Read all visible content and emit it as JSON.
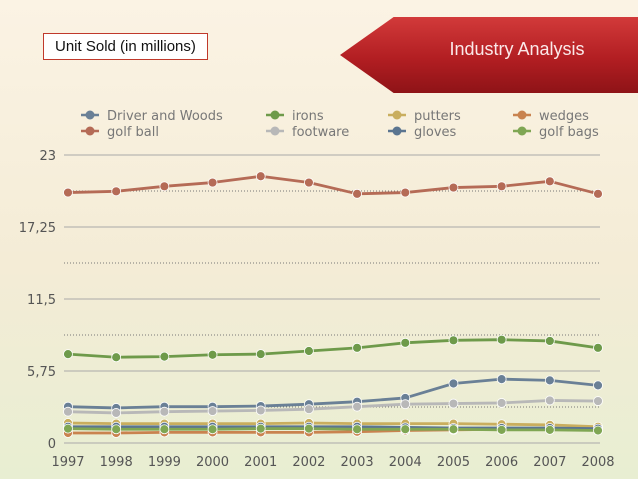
{
  "header": {
    "unit_label": "Unit Sold (in millions)",
    "banner_title": "Industry Analysis"
  },
  "chart_data": {
    "type": "line",
    "title": "",
    "xlabel": "",
    "ylabel": "Unit Sold (in millions)",
    "ylim": [
      0,
      23
    ],
    "yticks": [
      0,
      5.75,
      11.5,
      17.25,
      23
    ],
    "ytick_labels": [
      "0",
      "5,75",
      "11,5",
      "17,25",
      "23"
    ],
    "grid": true,
    "legend_position": "top",
    "categories": [
      "1997",
      "1998",
      "1999",
      "2000",
      "2001",
      "2002",
      "2003",
      "2004",
      "2005",
      "2006",
      "2007",
      "2008"
    ],
    "series": [
      {
        "name": "Driver and Woods",
        "color": "#6a8096",
        "values": [
          2.9,
          2.8,
          2.9,
          2.9,
          2.95,
          3.1,
          3.3,
          3.6,
          4.75,
          5.1,
          5.0,
          4.6
        ]
      },
      {
        "name": "irons",
        "color": "#6e9a4a",
        "values": [
          7.1,
          6.85,
          6.9,
          7.05,
          7.1,
          7.35,
          7.6,
          8.0,
          8.2,
          8.25,
          8.15,
          7.6
        ]
      },
      {
        "name": "putters",
        "color": "#c9ae5e",
        "values": [
          1.6,
          1.55,
          1.55,
          1.55,
          1.55,
          1.6,
          1.55,
          1.55,
          1.55,
          1.5,
          1.45,
          1.3
        ]
      },
      {
        "name": "wedges",
        "color": "#c9834f",
        "values": [
          0.8,
          0.8,
          0.85,
          0.85,
          0.85,
          0.85,
          0.9,
          1.0,
          1.05,
          1.1,
          1.1,
          1.1
        ]
      },
      {
        "name": "golf ball",
        "color": "#b56b56",
        "values": [
          20.0,
          20.1,
          20.5,
          20.8,
          21.3,
          20.8,
          19.9,
          20.0,
          20.4,
          20.5,
          20.9,
          19.9
        ]
      },
      {
        "name": "footware",
        "color": "#b8b8b8",
        "values": [
          2.5,
          2.4,
          2.5,
          2.55,
          2.6,
          2.7,
          2.9,
          3.1,
          3.15,
          3.2,
          3.4,
          3.35
        ]
      },
      {
        "name": "gloves",
        "color": "#5b7590",
        "values": [
          1.3,
          1.3,
          1.3,
          1.3,
          1.3,
          1.3,
          1.3,
          1.25,
          1.2,
          1.2,
          1.2,
          1.15
        ]
      },
      {
        "name": "golf bags",
        "color": "#7fa653",
        "values": [
          1.15,
          1.1,
          1.1,
          1.1,
          1.15,
          1.15,
          1.1,
          1.1,
          1.1,
          1.05,
          1.05,
          1.0
        ]
      }
    ]
  }
}
